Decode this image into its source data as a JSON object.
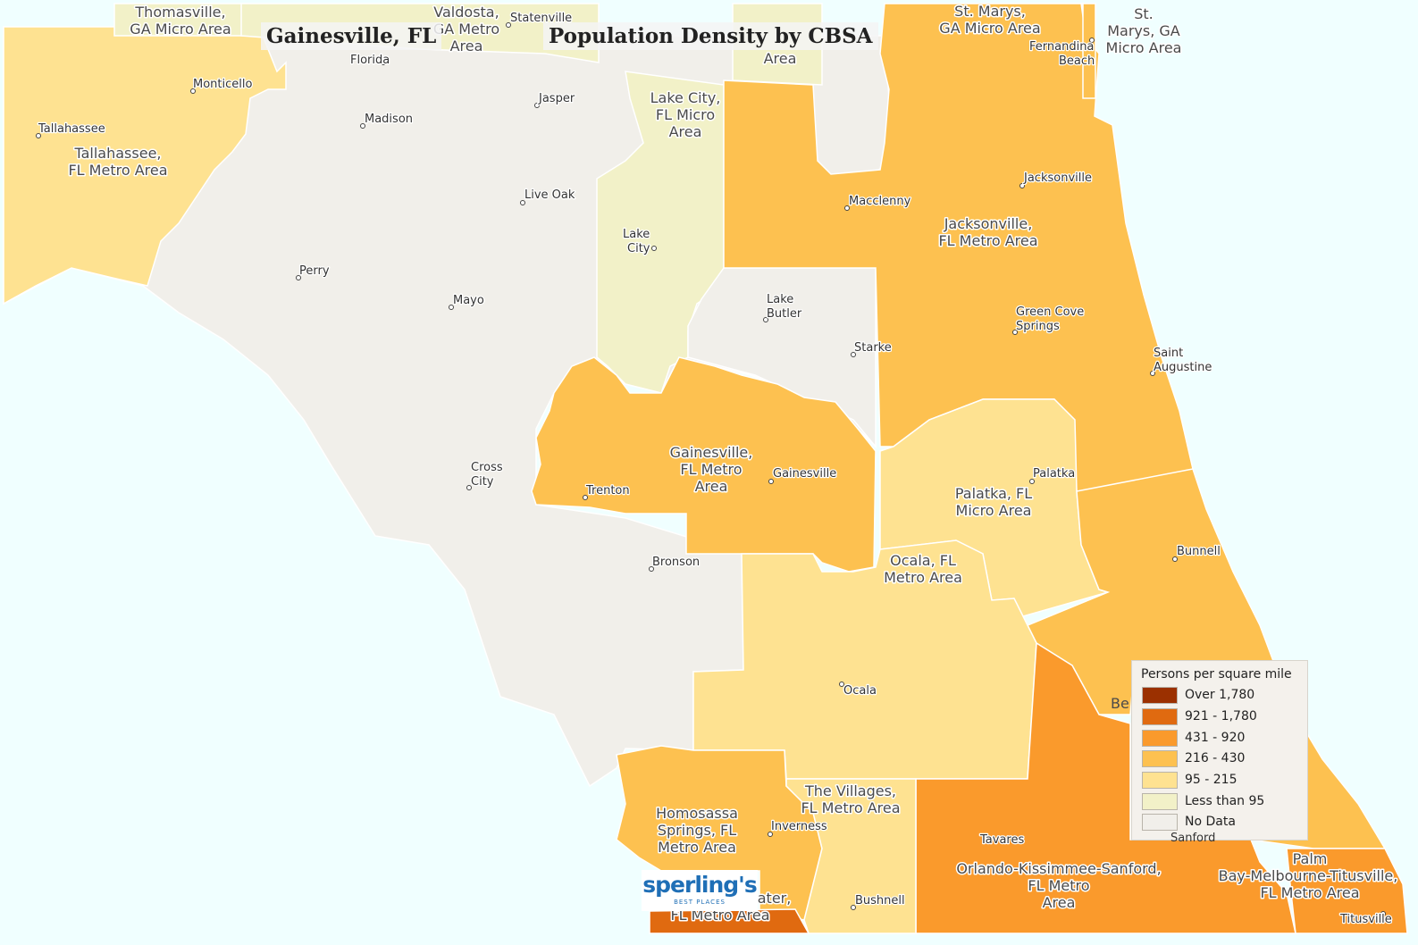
{
  "title_place": "Gainesville, FL",
  "title_topic": "Population Density by CBSA",
  "colors": {
    "over_1780": "#9b3000",
    "r921_1780": "#e06a10",
    "r431_920": "#fa9a2c",
    "r216_430": "#fdc150",
    "r95_215": "#fee291",
    "lt95": "#f2f1c8",
    "no_data": "#f1efea",
    "water": "#f0ffff"
  },
  "legend": {
    "title": "Persons per square mile",
    "items": [
      {
        "label": "Over 1,780",
        "color": "#9b3000"
      },
      {
        "label": "921 - 1,780",
        "color": "#e06a10"
      },
      {
        "label": "431 - 920",
        "color": "#fa9a2c"
      },
      {
        "label": "216 - 430",
        "color": "#fdc150"
      },
      {
        "label": "95 - 215",
        "color": "#fee291"
      },
      {
        "label": "Less than 95",
        "color": "#f2f1c8"
      },
      {
        "label": "No Data",
        "color": "#f1efea"
      }
    ]
  },
  "areas": {
    "thomasville": [
      "Thomasville,",
      "GA Micro Area"
    ],
    "valdosta": [
      "Valdosta,",
      "GA Metro",
      "Area"
    ],
    "waycross": [
      "Area"
    ],
    "st_marys_a": [
      "St. Marys,",
      "GA Micro Area"
    ],
    "st_marys_b": [
      "St.",
      "Marys, GA",
      "Micro Area"
    ],
    "tallahassee": [
      "Tallahassee,",
      "FL Metro Area"
    ],
    "lake_city": [
      "Lake City,",
      "FL Micro",
      "Area"
    ],
    "jacksonville": [
      "Jacksonville,",
      "FL Metro Area"
    ],
    "gainesville": [
      "Gainesville,",
      "FL Metro",
      "Area"
    ],
    "palatka": [
      "Palatka, FL",
      "Micro Area"
    ],
    "ocala": [
      "Ocala, FL",
      "Metro Area"
    ],
    "homosassa": [
      "Homosassa",
      "Springs, FL",
      "Metro Area"
    ],
    "villages": [
      "The Villages,",
      "FL Metro Area"
    ],
    "orlando": [
      "Orlando-Kissimmee-Sanford,",
      "FL Metro",
      "Area"
    ],
    "palm_bay": [
      "Palm",
      "Bay-Melbourne-Titusville,",
      "FL Metro Area"
    ],
    "tampa": [
      "water,",
      "FL Metro Area"
    ]
  },
  "cities": {
    "statenville": [
      "Statenville"
    ],
    "florida": [
      "Florida"
    ],
    "fernandina": [
      "Fernandina",
      "Beach"
    ],
    "monticello": [
      "Monticello"
    ],
    "tallahassee": [
      "Tallahassee"
    ],
    "jasper": [
      "Jasper"
    ],
    "madison": [
      "Madison"
    ],
    "jacksonville": [
      "Jacksonville"
    ],
    "live_oak": [
      "Live Oak"
    ],
    "macclenny": [
      "Macclenny"
    ],
    "lake_city": [
      "Lake",
      "City"
    ],
    "perry": [
      "Perry"
    ],
    "mayo": [
      "Mayo"
    ],
    "lake_butler": [
      "Lake",
      "Butler"
    ],
    "green_cove": [
      "Green Cove",
      "Springs"
    ],
    "starke": [
      "Starke"
    ],
    "saint_augustine": [
      "Saint",
      "Augustine"
    ],
    "cross_city": [
      "Cross",
      "City"
    ],
    "palatka": [
      "Palatka"
    ],
    "gainesville": [
      "Gainesville"
    ],
    "trenton": [
      "Trenton"
    ],
    "bunnell": [
      "Bunnell"
    ],
    "bronson": [
      "Bronson"
    ],
    "ocala": [
      "Ocala"
    ],
    "be": [
      "Be"
    ],
    "inverness": [
      "Inverness"
    ],
    "tavares": [
      "Tavares"
    ],
    "sanford": [
      "Sanford"
    ],
    "bushnell": [
      "Bushnell"
    ],
    "titusville": [
      "Titusville"
    ]
  },
  "logo": {
    "name": "sperling's",
    "subtitle": "BEST PLACES"
  }
}
